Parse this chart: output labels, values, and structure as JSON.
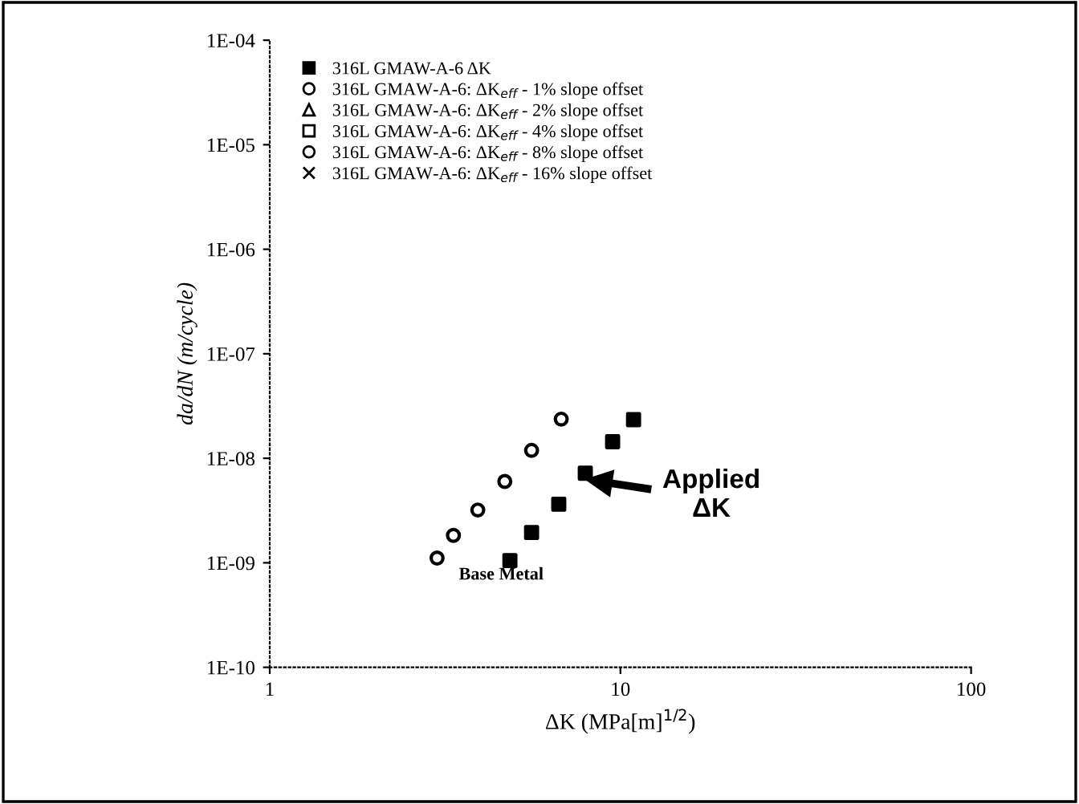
{
  "chart_data": {
    "type": "scatter",
    "xlabel": "ΔK (MPa[m]$^{1/2}$)",
    "ylabel": "da/dN (m/cycle)",
    "log": "xy",
    "grid": false,
    "legend": "top left",
    "xlim": [
      1,
      100
    ],
    "xticks": [
      1,
      10,
      100
    ],
    "ylim": [
      1e-10,
      0.0001
    ],
    "yticks": [
      {
        "value": 1e-10,
        "label": "1E-10"
      },
      {
        "value": 1e-09,
        "label": "1E-09"
      },
      {
        "value": 1e-08,
        "label": "1E-08"
      },
      {
        "value": 1e-07,
        "label": "1E-07"
      },
      {
        "value": 1e-06,
        "label": "1E-06"
      },
      {
        "value": 1e-05,
        "label": "1E-05"
      },
      {
        "value": 0.0001,
        "label": "1E-04"
      }
    ],
    "series": [
      {
        "name": "316L GMAW-A-6 ΔK",
        "color": "#000000",
        "marker": "square",
        "x": [
          4.84,
          5.58,
          6.67,
          7.94,
          9.5,
          10.9
        ],
        "values": [
          1.05e-09,
          1.95e-09,
          3.64e-09,
          7.2e-09,
          1.44e-08,
          2.34e-08
        ]
      },
      {
        "name": "316L GMAW-A-6: ΔK$_{eff}$ - 1% slope offset",
        "color": "#000000",
        "marker": "circle",
        "x": [
          3.0,
          3.34,
          3.92,
          4.68,
          5.58,
          6.78
        ],
        "values": [
          1.11e-09,
          1.83e-09,
          3.2e-09,
          6e-09,
          1.19e-08,
          2.37e-08
        ]
      },
      {
        "name": "316L GMAW-A-6: ΔK$_{eff}$ - 2% slope offset",
        "color": "#000000",
        "marker": "triangle"
      },
      {
        "name": "316L GMAW-A-6: ΔK$_{eff}$ - 4% slope offset",
        "color": "#000000",
        "marker": "square"
      },
      {
        "name": "316L GMAW-A-6: ΔK$_{eff}$ - 8% slope offset",
        "color": "#000000",
        "marker": "circle"
      },
      {
        "name": "316L GMAW-A-6: ΔK$_{eff}$ - 16% slope offset",
        "color": "#000000",
        "marker": "cross"
      }
    ],
    "annotations": [
      {
        "text": "Applied\nΔK",
        "x": 7.9,
        "y": 6.3e-09
      },
      "Base Metal"
    ]
  }
}
